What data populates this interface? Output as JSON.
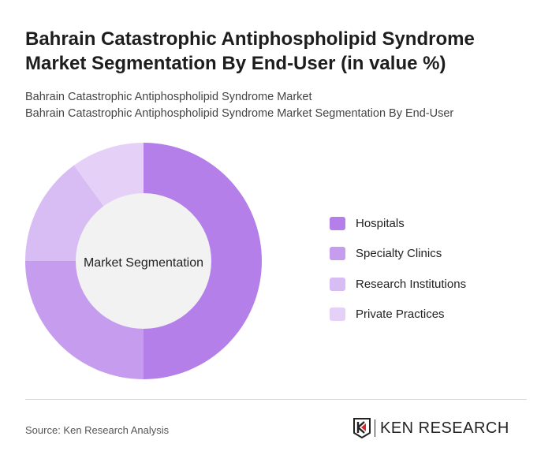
{
  "title": "Bahrain Catastrophic Antiphospholipid Syndrome Market Segmentation By End-User (in value %)",
  "subtitle1": "Bahrain Catastrophic Antiphospholipid Syndrome Market",
  "subtitle2": "Bahrain Catastrophic Antiphospholipid Syndrome Market Segmentation By End-User",
  "source": "Source: Ken Research Analysis",
  "logo_text": "KEN RESEARCH",
  "chart_data": {
    "type": "pie",
    "variant": "donut",
    "center_label": "Market Segmentation",
    "categories": [
      "Hospitals",
      "Specialty Clinics",
      "Research Institutions",
      "Private Practices"
    ],
    "values": [
      50,
      25,
      15,
      10
    ],
    "colors": [
      "#b47fe9",
      "#c69cee",
      "#d8bdf4",
      "#e5d0f7"
    ],
    "legend_position": "right"
  }
}
